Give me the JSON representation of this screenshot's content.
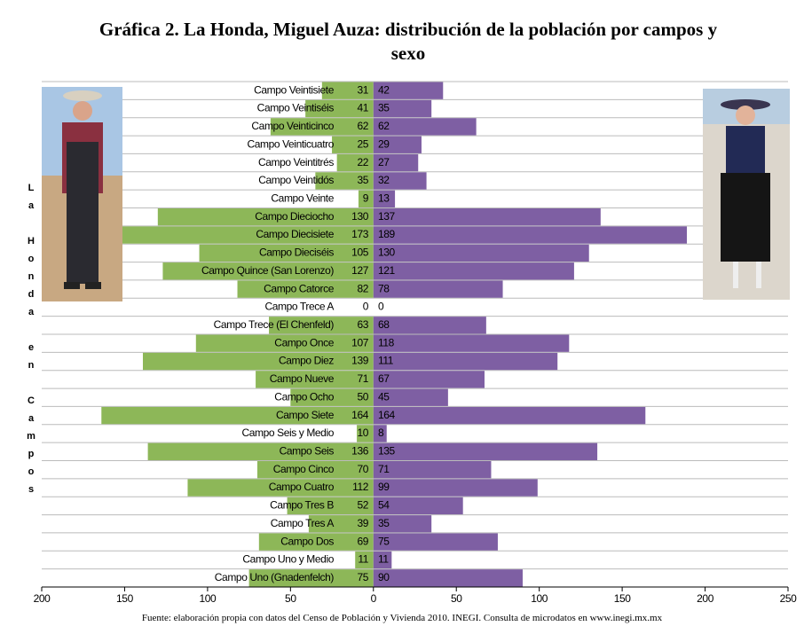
{
  "chart_data": {
    "type": "pyramid",
    "title": "Gráfica 2. La Honda, Miguel Auza: distribución de la población por campos y sexo",
    "side_label": "La Honda en Campos",
    "source": "Fuente: elaboración propia con datos del Censo de Población y Vivienda 2010. INEGI. Consulta de microdatos en www.inegi.mx.mx",
    "categories": [
      "Campo Veintisiete",
      "Campo Veintiséis",
      "Campo Veinticinco",
      "Campo Veinticuatro",
      "Campo Veintitrés",
      "Campo Veintidós",
      "Campo Veinte",
      "Campo Dieciocho",
      "Campo Diecisiete",
      "Campo Dieciséis",
      "Campo Quince (San Lorenzo)",
      "Campo Catorce",
      "Campo Trece A",
      "Campo Trece (El Chenfeld)",
      "Campo Once",
      "Campo Diez",
      "Campo Nueve",
      "Campo Ocho",
      "Campo Siete",
      "Campo Seis y Medio",
      "Campo Seis",
      "Campo Cinco",
      "Campo Cuatro",
      "Campo Tres B",
      "Campo Tres A",
      "Campo Dos",
      "Campo Uno y Medio",
      "Campo Uno (Gnadenfelch)"
    ],
    "series": [
      {
        "color": "#8db758",
        "values": [
          31,
          41,
          62,
          25,
          22,
          35,
          9,
          130,
          173,
          105,
          127,
          82,
          0,
          63,
          107,
          139,
          71,
          50,
          164,
          10,
          136,
          70,
          112,
          52,
          39,
          69,
          11,
          75
        ]
      },
      {
        "color": "#7e5fa3",
        "values": [
          42,
          35,
          62,
          29,
          27,
          32,
          13,
          137,
          189,
          130,
          121,
          78,
          0,
          68,
          118,
          111,
          67,
          45,
          164,
          8,
          135,
          71,
          99,
          54,
          35,
          75,
          11,
          90
        ]
      }
    ],
    "xlim": [
      -200,
      250
    ],
    "xticks": [
      {
        "value": -200,
        "label": "200"
      },
      {
        "value": -150,
        "label": "150"
      },
      {
        "value": -100,
        "label": "100"
      },
      {
        "value": -50,
        "label": "50"
      },
      0,
      50,
      100,
      150,
      200,
      250
    ]
  }
}
